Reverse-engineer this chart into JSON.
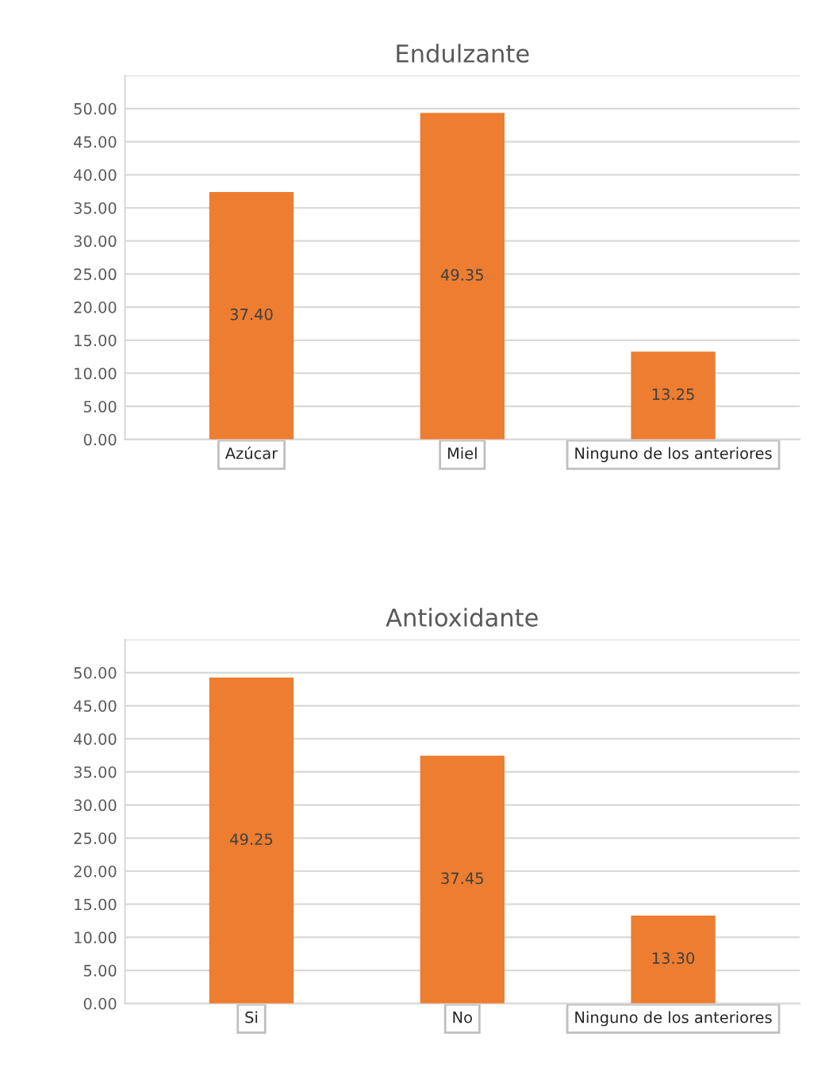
{
  "chart_data": [
    {
      "type": "bar",
      "title": "Endulzante",
      "categories": [
        "Azúcar",
        "Miel",
        "Ninguno de los anteriores"
      ],
      "values": [
        37.4,
        49.35,
        13.25
      ],
      "value_labels": [
        "37.40",
        "49.35",
        "13.25"
      ],
      "color": "#ed7d31",
      "ylim": [
        0,
        55
      ],
      "yticks": [
        {
          "value": 0,
          "label": "0.00"
        },
        {
          "value": 5,
          "label": "5.00"
        },
        {
          "value": 10,
          "label": "10.00"
        },
        {
          "value": 15,
          "label": "15.00"
        },
        {
          "value": 20,
          "label": "20.00"
        },
        {
          "value": 25,
          "label": "25.00"
        },
        {
          "value": 30,
          "label": "30.00"
        },
        {
          "value": 35,
          "label": "35.00"
        },
        {
          "value": 40,
          "label": "40.00"
        },
        {
          "value": 45,
          "label": "45.00"
        },
        {
          "value": 50,
          "label": "50.00"
        },
        {
          "value": 55,
          "label": null
        }
      ],
      "grid": "y"
    },
    {
      "type": "bar",
      "title": "Antioxidante",
      "categories": [
        "Si",
        "No",
        "Ninguno de los anteriores"
      ],
      "values": [
        49.25,
        37.45,
        13.3
      ],
      "value_labels": [
        "49.25",
        "37.45",
        "13.30"
      ],
      "color": "#ed7d31",
      "ylim": [
        0,
        55
      ],
      "yticks": [
        {
          "value": 0,
          "label": "0.00"
        },
        {
          "value": 5,
          "label": "5.00"
        },
        {
          "value": 10,
          "label": "10.00"
        },
        {
          "value": 15,
          "label": "15.00"
        },
        {
          "value": 20,
          "label": "20.00"
        },
        {
          "value": 25,
          "label": "25.00"
        },
        {
          "value": 30,
          "label": "30.00"
        },
        {
          "value": 35,
          "label": "35.00"
        },
        {
          "value": 40,
          "label": "40.00"
        },
        {
          "value": 45,
          "label": "45.00"
        },
        {
          "value": 50,
          "label": "50.00"
        },
        {
          "value": 55,
          "label": null
        }
      ],
      "grid": "y"
    }
  ]
}
